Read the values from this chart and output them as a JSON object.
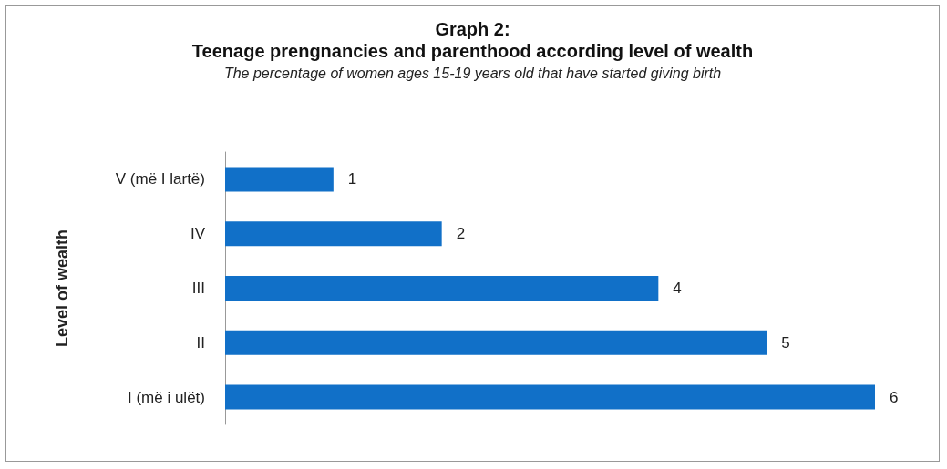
{
  "chart_data": {
    "type": "bar",
    "orientation": "horizontal",
    "title": "Graph 2:\nTeenage prengnancies and parenthood according level of wealth",
    "subtitle": "The percentage of women ages 15-19 years old that have started giving birth",
    "ylabel": "Level of wealth",
    "categories": [
      "V (më I lartë)",
      "IV",
      "III",
      "II",
      "I (më i ulët)"
    ],
    "values": [
      1,
      2,
      4,
      5,
      6
    ],
    "color": "#1170c8",
    "data_labels": true,
    "tick_labels": "y"
  }
}
